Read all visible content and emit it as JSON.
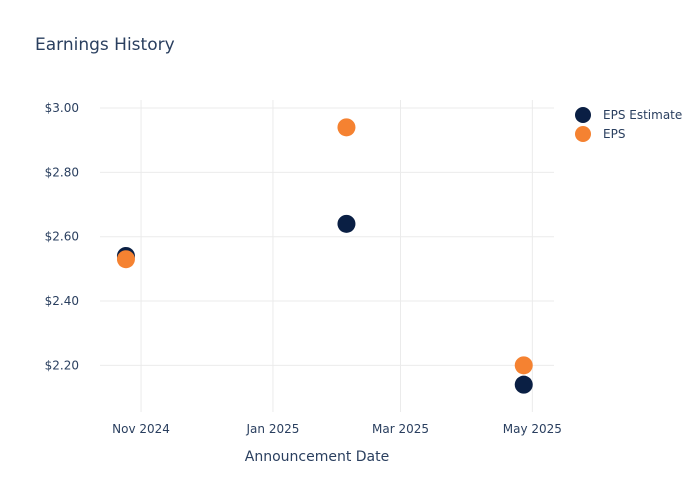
{
  "chart_data": {
    "type": "scatter",
    "title": "Earnings History",
    "xlabel": "Announcement Date",
    "ylabel": "",
    "x_tick_labels": [
      {
        "date": "2024-11-01",
        "label": "Nov 2024"
      },
      {
        "date": "2025-01-01",
        "label": "Jan 2025"
      },
      {
        "date": "2025-03-01",
        "label": "Mar 2025"
      },
      {
        "date": "2025-05-01",
        "label": "May 2025"
      }
    ],
    "y_tick_labels": [
      {
        "value": 2.2,
        "label": "$2.20"
      },
      {
        "value": 2.4,
        "label": "$2.40"
      },
      {
        "value": 2.6,
        "label": "$2.60"
      },
      {
        "value": 2.8,
        "label": "$2.80"
      },
      {
        "value": 3.0,
        "label": "$3.00"
      }
    ],
    "xlim": [
      "2024-10-13",
      "2025-05-11"
    ],
    "ylim": [
      2.055,
      3.025
    ],
    "grid": true,
    "legend_position": "top-right",
    "series": [
      {
        "name": "EPS Estimate",
        "color": "#0a1f44",
        "points": [
          {
            "x": "2024-10-25",
            "y": 2.54
          },
          {
            "x": "2025-02-04",
            "y": 2.64
          },
          {
            "x": "2025-04-27",
            "y": 2.14
          }
        ]
      },
      {
        "name": "EPS",
        "color": "#f58231",
        "points": [
          {
            "x": "2024-10-25",
            "y": 2.53
          },
          {
            "x": "2025-02-04",
            "y": 2.94
          },
          {
            "x": "2025-04-27",
            "y": 2.2
          }
        ]
      }
    ]
  }
}
